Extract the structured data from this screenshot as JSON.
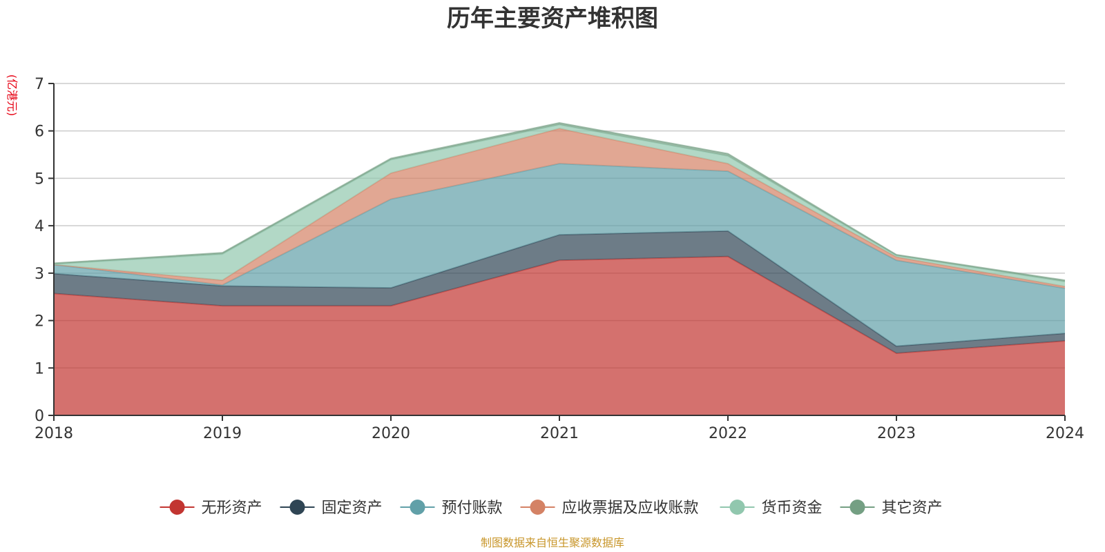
{
  "chart_data": {
    "type": "area",
    "stacked": true,
    "title": "历年主要资产堆积图",
    "unit_label": "(亿港元)",
    "source_text": "制图数据来自恒生聚源数据库",
    "categories": [
      "2018",
      "2019",
      "2020",
      "2021",
      "2022",
      "2023",
      "2024"
    ],
    "ylim": [
      0,
      7
    ],
    "yticks": [
      "0",
      "1",
      "2",
      "3",
      "4",
      "5",
      "6",
      "7"
    ],
    "grid": true,
    "legend_position": "bottom",
    "series": [
      {
        "name": "无形资产",
        "color": "#c23531",
        "values": [
          2.57,
          2.31,
          2.31,
          3.27,
          3.35,
          1.31,
          1.57
        ]
      },
      {
        "name": "固定资产",
        "color": "#2f4554",
        "values": [
          0.42,
          0.42,
          0.38,
          0.54,
          0.54,
          0.15,
          0.16
        ]
      },
      {
        "name": "预付账款",
        "color": "#61a0a8",
        "values": [
          0.19,
          0.02,
          1.87,
          1.5,
          1.26,
          1.81,
          0.95
        ]
      },
      {
        "name": "应收票据及应收账款",
        "color": "#d48265",
        "values": [
          0.0,
          0.1,
          0.55,
          0.74,
          0.16,
          0.07,
          0.04
        ]
      },
      {
        "name": "货币资金",
        "color": "#91c7ae",
        "values": [
          0.01,
          0.55,
          0.28,
          0.08,
          0.16,
          0.03,
          0.1
        ]
      },
      {
        "name": "其它资产",
        "color": "#749f83",
        "values": [
          0.02,
          0.03,
          0.03,
          0.04,
          0.05,
          0.02,
          0.03
        ]
      }
    ]
  }
}
